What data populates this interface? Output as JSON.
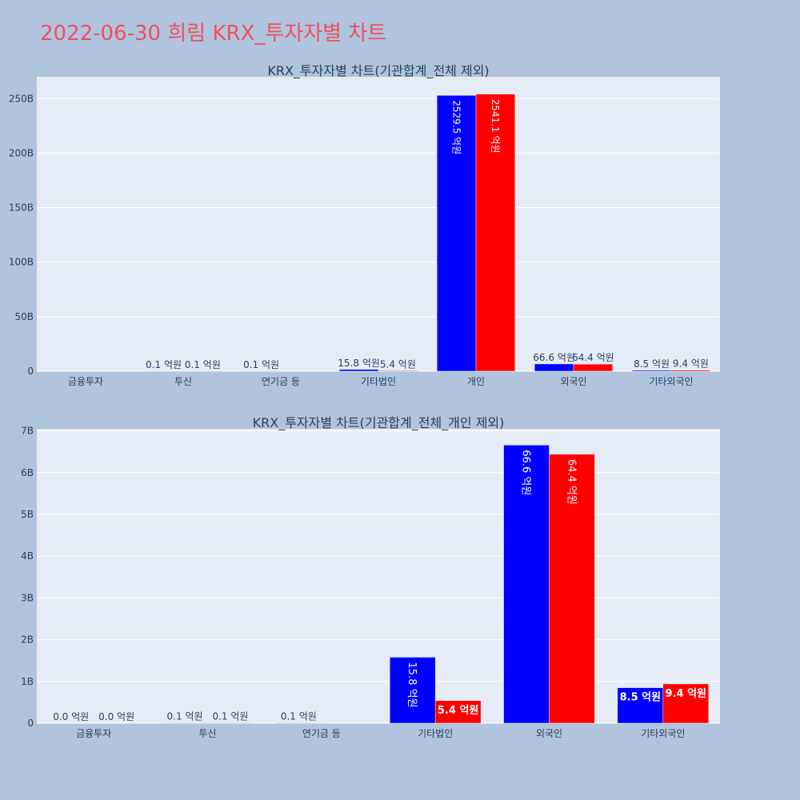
{
  "page_title": "2022-06-30 희림 KRX_투자자별 차트",
  "colors": {
    "page_bg": "#b0c4de",
    "plot_bg": "#e5ecf6",
    "grid": "#ffffff",
    "title": "#ef4f5e",
    "text": "#2a3f5f",
    "series_buy": "#0000ff",
    "series_sell": "#ff0000"
  },
  "chart_data": [
    {
      "type": "bar",
      "title": "KRX_투자자별 차트(기관합계_전체 제외)",
      "xlabel": "",
      "ylabel": "",
      "categories": [
        "금융투자",
        "투신",
        "연기금 등",
        "기타법인",
        "개인",
        "외국인",
        "기타외국인"
      ],
      "y_tick_values": [
        0,
        50000000000,
        100000000000,
        150000000000,
        200000000000,
        250000000000
      ],
      "y_tick_labels": [
        "0",
        "50B",
        "100B",
        "150B",
        "200B",
        "250B"
      ],
      "ylim": [
        0,
        270000000000
      ],
      "grid": true,
      "series": [
        {
          "color": "#0000ff",
          "values": [
            0,
            10000000,
            10000000,
            1580000000,
            252950000000,
            6660000000,
            850000000
          ],
          "labels": [
            "",
            "0.1 억원",
            "0.1 억원",
            "15.8 억원",
            "2529.5 억원",
            "66.6 억원",
            "8.5 억원"
          ]
        },
        {
          "color": "#ff0000",
          "values": [
            0,
            10000000,
            0,
            540000000,
            254110000000,
            6440000000,
            940000000
          ],
          "labels": [
            "",
            "0.1 억원",
            "",
            "5.4 억원",
            "2541.1 억원",
            "64.4 억원",
            "9.4 억원"
          ]
        }
      ]
    },
    {
      "type": "bar",
      "title": "KRX_투자자별 차트(기관합계_전체_개인 제외)",
      "xlabel": "",
      "ylabel": "",
      "categories": [
        "금융투자",
        "투신",
        "연기금 등",
        "기타법인",
        "외국인",
        "기타외국인"
      ],
      "y_tick_values": [
        0,
        1000000000,
        2000000000,
        3000000000,
        4000000000,
        5000000000,
        6000000000,
        7000000000
      ],
      "y_tick_labels": [
        "0",
        "1B",
        "2B",
        "3B",
        "4B",
        "5B",
        "6B",
        "7B"
      ],
      "ylim": [
        0,
        7050000000
      ],
      "grid": true,
      "series": [
        {
          "color": "#0000ff",
          "values": [
            0,
            10000000,
            10000000,
            1580000000,
            6660000000,
            850000000
          ],
          "labels": [
            "0.0 억원",
            "0.1 억원",
            "0.1 억원",
            "15.8 억원",
            "66.6 억원",
            "8.5 억원"
          ]
        },
        {
          "color": "#ff0000",
          "values": [
            0,
            10000000,
            0,
            540000000,
            6440000000,
            940000000
          ],
          "labels": [
            "0.0 억원",
            "0.1 억원",
            "",
            "5.4 억원",
            "64.4 억원",
            "9.4 억원"
          ]
        }
      ]
    }
  ]
}
